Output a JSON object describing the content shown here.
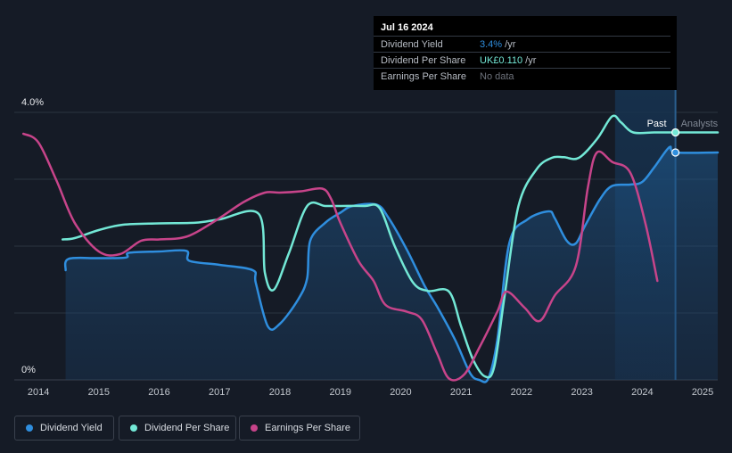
{
  "tooltip": {
    "date": "Jul 16 2024",
    "rows": [
      {
        "label": "Dividend Yield",
        "value": "3.4%",
        "unit": " /yr",
        "color": "#2f8ede"
      },
      {
        "label": "Dividend Per Share",
        "value": "UK£0.110",
        "unit": " /yr",
        "color": "#73e8d6"
      },
      {
        "label": "Earnings Per Share",
        "value": "No data",
        "unit": "",
        "color": "#6d727b"
      }
    ]
  },
  "legend": [
    {
      "label": "Dividend Yield",
      "color": "#2f8ede"
    },
    {
      "label": "Dividend Per Share",
      "color": "#73e8d6"
    },
    {
      "label": "Earnings Per Share",
      "color": "#c7448a"
    }
  ],
  "chart_data": {
    "type": "line",
    "y_axis_labels": [
      "4.0%",
      "0%"
    ],
    "ylim": [
      0,
      4.0
    ],
    "xlim": [
      2013.6,
      2025.25
    ],
    "x_ticks": [
      "2014",
      "2015",
      "2016",
      "2017",
      "2018",
      "2019",
      "2020",
      "2021",
      "2022",
      "2023",
      "2024",
      "2025"
    ],
    "divider_labels": {
      "past": "Past",
      "analysts": "Analysts"
    },
    "past_region": {
      "start": 2023.55,
      "end": 2024.55
    },
    "grid": true,
    "series": [
      {
        "name": "Dividend Yield",
        "color": "#2f8ede",
        "area": true,
        "points": [
          [
            2014.45,
            1.64
          ],
          [
            2014.5,
            1.81
          ],
          [
            2015.0,
            1.82
          ],
          [
            2015.45,
            1.83
          ],
          [
            2015.5,
            1.9
          ],
          [
            2016.0,
            1.92
          ],
          [
            2016.45,
            1.93
          ],
          [
            2016.5,
            1.78
          ],
          [
            2017.0,
            1.72
          ],
          [
            2017.55,
            1.64
          ],
          [
            2017.6,
            1.45
          ],
          [
            2017.8,
            0.8
          ],
          [
            2018.0,
            0.84
          ],
          [
            2018.3,
            1.2
          ],
          [
            2018.45,
            1.52
          ],
          [
            2018.5,
            2.08
          ],
          [
            2018.75,
            2.35
          ],
          [
            2019.0,
            2.5
          ],
          [
            2019.2,
            2.6
          ],
          [
            2019.6,
            2.62
          ],
          [
            2019.8,
            2.42
          ],
          [
            2020.1,
            1.95
          ],
          [
            2020.4,
            1.4
          ],
          [
            2020.6,
            1.1
          ],
          [
            2020.9,
            0.6
          ],
          [
            2021.15,
            0.1
          ],
          [
            2021.3,
            0.0
          ],
          [
            2021.45,
            0.02
          ],
          [
            2021.6,
            0.6
          ],
          [
            2021.8,
            2.05
          ],
          [
            2022.1,
            2.4
          ],
          [
            2022.45,
            2.52
          ],
          [
            2022.55,
            2.42
          ],
          [
            2022.75,
            2.08
          ],
          [
            2022.9,
            2.04
          ],
          [
            2023.05,
            2.3
          ],
          [
            2023.3,
            2.7
          ],
          [
            2023.5,
            2.9
          ],
          [
            2023.8,
            2.92
          ],
          [
            2024.0,
            2.96
          ],
          [
            2024.2,
            3.18
          ],
          [
            2024.45,
            3.48
          ],
          [
            2024.55,
            3.4
          ],
          [
            2025.25,
            3.4
          ]
        ]
      },
      {
        "name": "Dividend Per Share",
        "color": "#73e8d6",
        "area": false,
        "points": [
          [
            2014.4,
            2.1
          ],
          [
            2014.6,
            2.12
          ],
          [
            2015.0,
            2.24
          ],
          [
            2015.4,
            2.32
          ],
          [
            2016.0,
            2.34
          ],
          [
            2016.6,
            2.35
          ],
          [
            2017.0,
            2.4
          ],
          [
            2017.65,
            2.48
          ],
          [
            2017.75,
            1.6
          ],
          [
            2017.9,
            1.35
          ],
          [
            2018.15,
            1.9
          ],
          [
            2018.45,
            2.6
          ],
          [
            2018.75,
            2.6
          ],
          [
            2019.0,
            2.6
          ],
          [
            2019.4,
            2.6
          ],
          [
            2019.65,
            2.57
          ],
          [
            2019.9,
            2.0
          ],
          [
            2020.2,
            1.46
          ],
          [
            2020.45,
            1.33
          ],
          [
            2020.8,
            1.32
          ],
          [
            2021.0,
            0.8
          ],
          [
            2021.2,
            0.3
          ],
          [
            2021.4,
            0.05
          ],
          [
            2021.55,
            0.2
          ],
          [
            2021.72,
            1.25
          ],
          [
            2021.95,
            2.6
          ],
          [
            2022.25,
            3.15
          ],
          [
            2022.5,
            3.32
          ],
          [
            2022.7,
            3.33
          ],
          [
            2022.95,
            3.32
          ],
          [
            2023.25,
            3.6
          ],
          [
            2023.5,
            3.94
          ],
          [
            2023.65,
            3.85
          ],
          [
            2023.85,
            3.7
          ],
          [
            2024.2,
            3.7
          ],
          [
            2024.55,
            3.7
          ],
          [
            2025.25,
            3.7
          ]
        ]
      },
      {
        "name": "Earnings Per Share",
        "color": "#c7448a",
        "area": false,
        "points": [
          [
            2013.75,
            3.68
          ],
          [
            2014.0,
            3.55
          ],
          [
            2014.3,
            2.98
          ],
          [
            2014.6,
            2.35
          ],
          [
            2015.0,
            1.92
          ],
          [
            2015.35,
            1.88
          ],
          [
            2015.7,
            2.08
          ],
          [
            2016.0,
            2.1
          ],
          [
            2016.35,
            2.12
          ],
          [
            2016.6,
            2.2
          ],
          [
            2017.0,
            2.42
          ],
          [
            2017.4,
            2.66
          ],
          [
            2017.75,
            2.8
          ],
          [
            2018.0,
            2.8
          ],
          [
            2018.35,
            2.82
          ],
          [
            2018.7,
            2.86
          ],
          [
            2018.85,
            2.7
          ],
          [
            2019.0,
            2.35
          ],
          [
            2019.3,
            1.78
          ],
          [
            2019.55,
            1.48
          ],
          [
            2019.75,
            1.12
          ],
          [
            2020.1,
            1.02
          ],
          [
            2020.35,
            0.9
          ],
          [
            2020.6,
            0.4
          ],
          [
            2020.8,
            0.02
          ],
          [
            2021.05,
            0.08
          ],
          [
            2021.3,
            0.48
          ],
          [
            2021.6,
            1.02
          ],
          [
            2021.75,
            1.32
          ],
          [
            2022.05,
            1.08
          ],
          [
            2022.3,
            0.88
          ],
          [
            2022.55,
            1.26
          ],
          [
            2022.9,
            1.7
          ],
          [
            2023.1,
            2.88
          ],
          [
            2023.25,
            3.4
          ],
          [
            2023.5,
            3.26
          ],
          [
            2023.8,
            3.1
          ],
          [
            2024.05,
            2.35
          ],
          [
            2024.25,
            1.48
          ]
        ]
      }
    ],
    "end_markers": [
      {
        "series": "Dividend Per Share",
        "x": 2024.55,
        "y": 3.7
      },
      {
        "series": "Dividend Yield",
        "x": 2024.55,
        "y": 3.4
      }
    ]
  }
}
